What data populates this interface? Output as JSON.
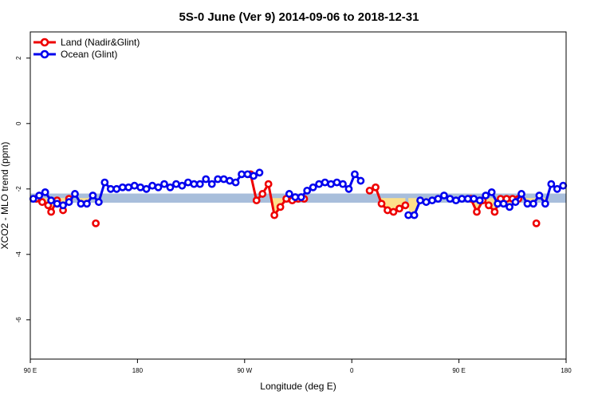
{
  "chart_data": {
    "type": "line",
    "title": "5S-0 June (Ver 9)   2014-09-06 to 2018-12-31",
    "xlabel": "Longitude (deg E)",
    "ylabel": "XCO2 - MLO trend (ppm)",
    "xlim": [
      90,
      450
    ],
    "ylim": [
      -7.2,
      2.8
    ],
    "x_ticks": [
      {
        "value": 90,
        "label": "90 E"
      },
      {
        "value": 162,
        "label": "180"
      },
      {
        "value": 234,
        "label": "90 W"
      },
      {
        "value": 306,
        "label": "0"
      },
      {
        "value": 378,
        "label": "90 E"
      },
      {
        "value": 450,
        "label": "180"
      }
    ],
    "y_ticks": [
      {
        "value": 2,
        "label": "2"
      },
      {
        "value": 0,
        "label": "0"
      },
      {
        "value": -2,
        "label": "-2"
      },
      {
        "value": -4,
        "label": "-4"
      },
      {
        "value": -6,
        "label": "-6"
      }
    ],
    "band": {
      "center": -2.28,
      "half_width": 0.14,
      "color": "#a8bedb"
    },
    "fill_color": "#fde08a",
    "grid": false,
    "legend_position": "top-left",
    "series": [
      {
        "name": "Land (Nadir&Glint)",
        "color": "#ee0000",
        "x": [
          94,
          98,
          102,
          104,
          108,
          112,
          116,
          134,
          238,
          242,
          246,
          250,
          254,
          258,
          262,
          266,
          270,
          274,
          318,
          322,
          326,
          330,
          334,
          338,
          342,
          386,
          390,
          394,
          398,
          402,
          406,
          410,
          414,
          418,
          430
        ],
        "y": [
          -2.3,
          -2.4,
          -2.5,
          -2.7,
          -2.35,
          -2.65,
          -2.3,
          -3.05,
          -1.55,
          -2.35,
          -2.15,
          -1.85,
          -2.8,
          -2.55,
          -2.3,
          -2.35,
          -2.3,
          -2.3,
          -2.05,
          -1.95,
          -2.45,
          -2.65,
          -2.7,
          -2.6,
          -2.5,
          -2.3,
          -2.7,
          -2.35,
          -2.5,
          -2.7,
          -2.3,
          -2.3,
          -2.3,
          -2.3,
          -3.05
        ]
      },
      {
        "name": "Ocean (Glint)",
        "color": "#0000ee",
        "x": [
          92,
          96,
          100,
          104,
          108,
          112,
          116,
          120,
          124,
          128,
          132,
          136,
          140,
          144,
          148,
          152,
          156,
          160,
          164,
          168,
          172,
          176,
          180,
          184,
          188,
          192,
          196,
          200,
          204,
          208,
          212,
          216,
          220,
          224,
          228,
          232,
          236,
          240,
          244,
          264,
          268,
          272,
          276,
          280,
          284,
          288,
          292,
          296,
          300,
          304,
          308,
          312,
          344,
          348,
          352,
          356,
          360,
          364,
          368,
          372,
          376,
          380,
          384,
          388,
          392,
          396,
          400,
          404,
          408,
          412,
          416,
          420,
          424,
          428,
          432,
          436,
          440,
          444,
          448
        ],
        "y": [
          -2.3,
          -2.2,
          -2.1,
          -2.35,
          -2.45,
          -2.5,
          -2.4,
          -2.15,
          -2.45,
          -2.45,
          -2.2,
          -2.4,
          -1.8,
          -2.0,
          -2.0,
          -1.95,
          -1.95,
          -1.9,
          -1.95,
          -2.0,
          -1.9,
          -1.95,
          -1.85,
          -1.95,
          -1.85,
          -1.9,
          -1.8,
          -1.85,
          -1.85,
          -1.7,
          -1.85,
          -1.7,
          -1.7,
          -1.75,
          -1.8,
          -1.55,
          -1.55,
          -1.6,
          -1.5,
          -2.15,
          -2.25,
          -2.25,
          -2.05,
          -1.95,
          -1.85,
          -1.8,
          -1.85,
          -1.8,
          -1.85,
          -2.0,
          -1.55,
          -1.75,
          -2.8,
          -2.8,
          -2.35,
          -2.4,
          -2.35,
          -2.3,
          -2.2,
          -2.3,
          -2.35,
          -2.3,
          -2.3,
          -2.3,
          -2.35,
          -2.2,
          -2.1,
          -2.45,
          -2.45,
          -2.55,
          -2.4,
          -2.15,
          -2.45,
          -2.45,
          -2.2,
          -2.45,
          -1.85,
          -2.0,
          -1.9
        ]
      }
    ]
  }
}
